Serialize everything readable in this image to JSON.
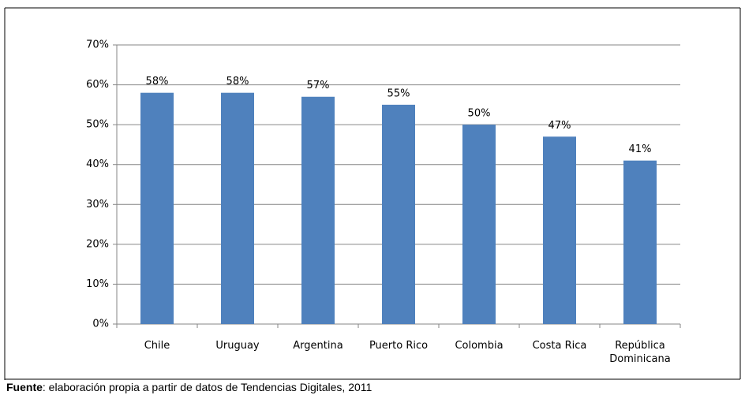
{
  "chart_data": {
    "type": "bar",
    "categories": [
      "Chile",
      "Uruguay",
      "Argentina",
      "Puerto Rico",
      "Colombia",
      "Costa Rica",
      "República Dominicana"
    ],
    "values": [
      58,
      58,
      57,
      55,
      50,
      47,
      41
    ],
    "value_labels": [
      "58%",
      "58%",
      "57%",
      "55%",
      "50%",
      "47%",
      "41%"
    ],
    "color": "#4f81bd",
    "ylim": [
      0,
      70
    ],
    "yticks": [
      {
        "value": 0,
        "label": "0%"
      },
      {
        "value": 10,
        "label": "10%"
      },
      {
        "value": 20,
        "label": "20%"
      },
      {
        "value": 30,
        "label": "30%"
      },
      {
        "value": 40,
        "label": "40%"
      },
      {
        "value": 50,
        "label": "50%"
      },
      {
        "value": 60,
        "label": "60%"
      },
      {
        "value": 70,
        "label": "70%"
      }
    ],
    "grid": true
  },
  "source": {
    "label": "Fuente",
    "text": ": elaboración propia a partir de datos de Tendencias Digitales, 2011"
  }
}
